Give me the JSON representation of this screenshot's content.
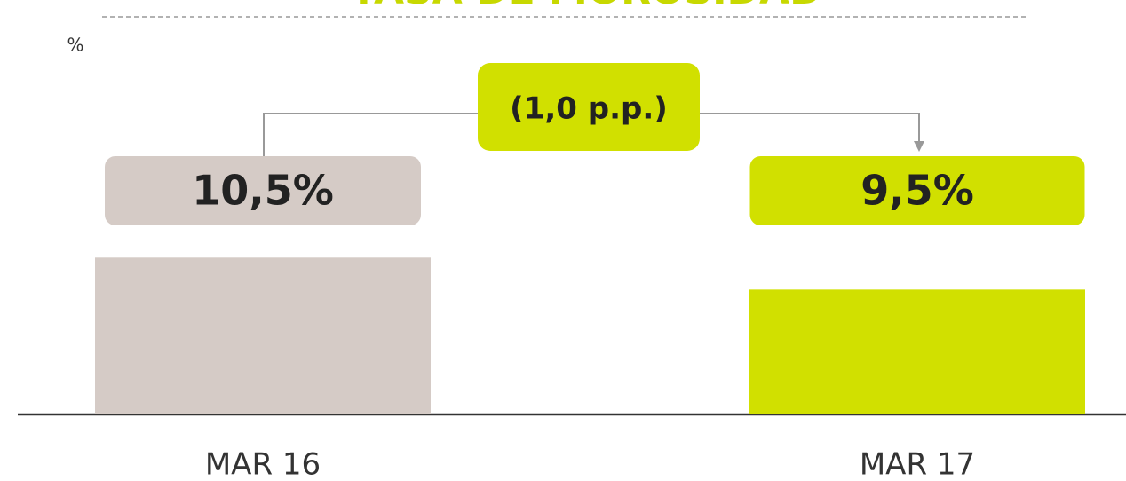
{
  "chart_data": {
    "type": "bar",
    "title": "TASA DE MOROSIDAD",
    "unit_label": "%",
    "categories": [
      "MAR 16",
      "MAR 17"
    ],
    "values": [
      10.5,
      9.5
    ],
    "value_labels": [
      "10,5%",
      "9,5%"
    ],
    "colors": [
      "#d5cbc6",
      "#d1e000"
    ],
    "annotation": "(1,0 p.p.)",
    "ylim": [
      5.6,
      15
    ],
    "grid": false
  }
}
